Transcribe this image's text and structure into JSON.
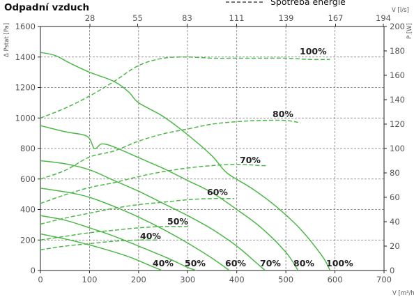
{
  "chart_data": {
    "type": "line",
    "title": "Odpadní vzduch",
    "legend": {
      "text": "Spotřeba energie",
      "placement": "top-right"
    },
    "x_axis": {
      "label": "V [m³/h]",
      "range": [
        0,
        700
      ],
      "ticks": [
        0,
        100,
        200,
        300,
        400,
        500,
        600,
        700
      ]
    },
    "x2_axis": {
      "label": "V [l/s]",
      "range": [
        0,
        194.4
      ],
      "ticks": [
        28,
        55,
        83,
        111,
        139,
        167,
        194
      ]
    },
    "y_axis": {
      "label": "Δ Pstat [Pa]",
      "range": [
        0,
        1600
      ],
      "ticks": [
        0,
        200,
        400,
        600,
        800,
        1000,
        1200,
        1400,
        1600
      ]
    },
    "y2_axis": {
      "label": "P [W]",
      "range": [
        0,
        200
      ],
      "ticks": [
        0,
        20,
        40,
        60,
        80,
        100,
        120,
        140,
        160,
        180,
        200
      ]
    },
    "grid": true,
    "colors": {
      "curve": "#4db848",
      "grid": "#7a7a7a",
      "text": "#222222"
    },
    "pressure_series": [
      {
        "label": "40%",
        "x": [
          0,
          60,
          120,
          180,
          225,
          248
        ],
        "y": [
          240,
          200,
          150,
          90,
          30,
          0
        ]
      },
      {
        "label": "50%",
        "x": [
          0,
          50,
          100,
          150,
          200,
          260,
          300,
          318
        ],
        "y": [
          360,
          330,
          280,
          225,
          160,
          80,
          20,
          0
        ]
      },
      {
        "label": "60%",
        "x": [
          0,
          60,
          100,
          150,
          200,
          250,
          300,
          350,
          385
        ],
        "y": [
          540,
          510,
          480,
          420,
          350,
          270,
          180,
          80,
          0
        ]
      },
      {
        "label": "70%",
        "x": [
          0,
          50,
          100,
          150,
          200,
          250,
          300,
          350,
          400,
          440,
          458
        ],
        "y": [
          720,
          700,
          660,
          590,
          520,
          440,
          360,
          270,
          160,
          50,
          0
        ]
      },
      {
        "label": "80%",
        "x": [
          0,
          50,
          95,
          110,
          125,
          150,
          200,
          250,
          300,
          350,
          400,
          450,
          500,
          525
        ],
        "y": [
          950,
          910,
          880,
          800,
          830,
          810,
          740,
          670,
          590,
          510,
          400,
          280,
          120,
          0
        ]
      },
      {
        "label": "100%",
        "x": [
          0,
          30,
          60,
          100,
          150,
          180,
          200,
          250,
          300,
          350,
          380,
          430,
          480,
          530,
          575,
          590
        ],
        "y": [
          1430,
          1410,
          1360,
          1300,
          1240,
          1170,
          1100,
          1010,
          890,
          750,
          640,
          540,
          420,
          270,
          90,
          0
        ]
      }
    ],
    "power_series": [
      {
        "label": "40%",
        "x": [
          0,
          50,
          100,
          150,
          200,
          240
        ],
        "y": [
          17,
          20,
          22,
          24,
          25,
          25
        ]
      },
      {
        "label": "50%",
        "x": [
          0,
          50,
          100,
          150,
          200,
          250,
          300
        ],
        "y": [
          25,
          28,
          31,
          33,
          35,
          36,
          36
        ]
      },
      {
        "label": "60%",
        "x": [
          0,
          50,
          100,
          150,
          200,
          250,
          300,
          350,
          395
        ],
        "y": [
          38,
          43,
          47,
          51,
          54,
          56,
          58,
          59,
          59
        ]
      },
      {
        "label": "70%",
        "x": [
          0,
          50,
          100,
          150,
          200,
          250,
          300,
          350,
          400,
          450,
          460
        ],
        "y": [
          55,
          62,
          68,
          72,
          77,
          81,
          84,
          86,
          87,
          86,
          86
        ]
      },
      {
        "label": "80%",
        "x": [
          0,
          50,
          100,
          150,
          200,
          250,
          300,
          350,
          400,
          450,
          500,
          530
        ],
        "y": [
          75,
          82,
          93,
          98,
          106,
          112,
          116,
          120,
          122,
          123,
          123,
          121
        ]
      },
      {
        "label": "100%",
        "x": [
          0,
          50,
          100,
          150,
          200,
          250,
          300,
          350,
          400,
          450,
          500,
          550,
          590
        ],
        "y": [
          125,
          133,
          143,
          155,
          168,
          174,
          175,
          174,
          174,
          174,
          174,
          173,
          173
        ]
      }
    ],
    "power_labels": [
      "100%",
      "80%",
      "70%",
      "60%",
      "50%",
      "40%"
    ],
    "pressure_labels": [
      "40%",
      "50%",
      "60%",
      "70%",
      "80%",
      "100%"
    ]
  }
}
